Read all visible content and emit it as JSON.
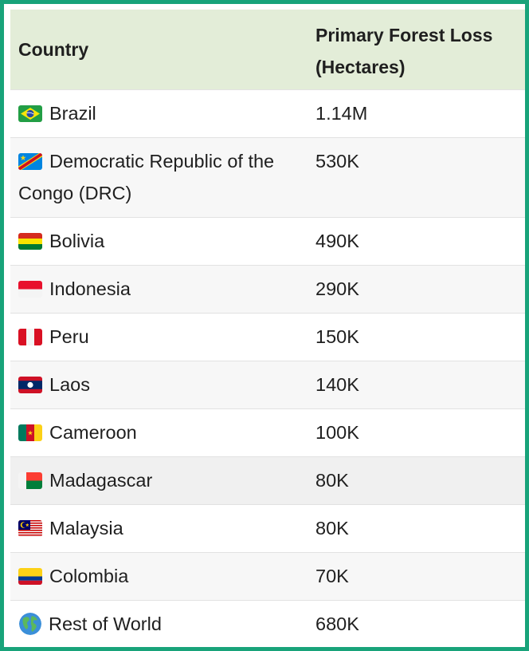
{
  "table": {
    "headers": [
      "Country",
      "Primary Forest Loss (Hectares)"
    ],
    "header_col2_lines": [
      "Primary Forest Loss",
      "(Hectares)"
    ],
    "rows": [
      {
        "country": "Brazil",
        "flag": "brazil-flag-icon",
        "loss": "1.14M"
      },
      {
        "country": "Democratic Republic of the Congo (DRC)",
        "flag": "drc-flag-icon",
        "loss": "530K"
      },
      {
        "country": "Bolivia",
        "flag": "bolivia-flag-icon",
        "loss": "490K"
      },
      {
        "country": "Indonesia",
        "flag": "indonesia-flag-icon",
        "loss": "290K"
      },
      {
        "country": "Peru",
        "flag": "peru-flag-icon",
        "loss": "150K"
      },
      {
        "country": "Laos",
        "flag": "laos-flag-icon",
        "loss": "140K"
      },
      {
        "country": "Cameroon",
        "flag": "cameroon-flag-icon",
        "loss": "100K"
      },
      {
        "country": "Madagascar",
        "flag": "madagascar-flag-icon",
        "loss": "80K"
      },
      {
        "country": "Malaysia",
        "flag": "malaysia-flag-icon",
        "loss": "80K"
      },
      {
        "country": "Colombia",
        "flag": "colombia-flag-icon",
        "loss": "70K"
      },
      {
        "country": "Rest of World",
        "flag": "globe-icon",
        "loss": "680K"
      }
    ]
  },
  "colors": {
    "border": "#18a37a",
    "header_bg": "#e3edd8",
    "row_alt_bg": "#f7f7f7"
  }
}
